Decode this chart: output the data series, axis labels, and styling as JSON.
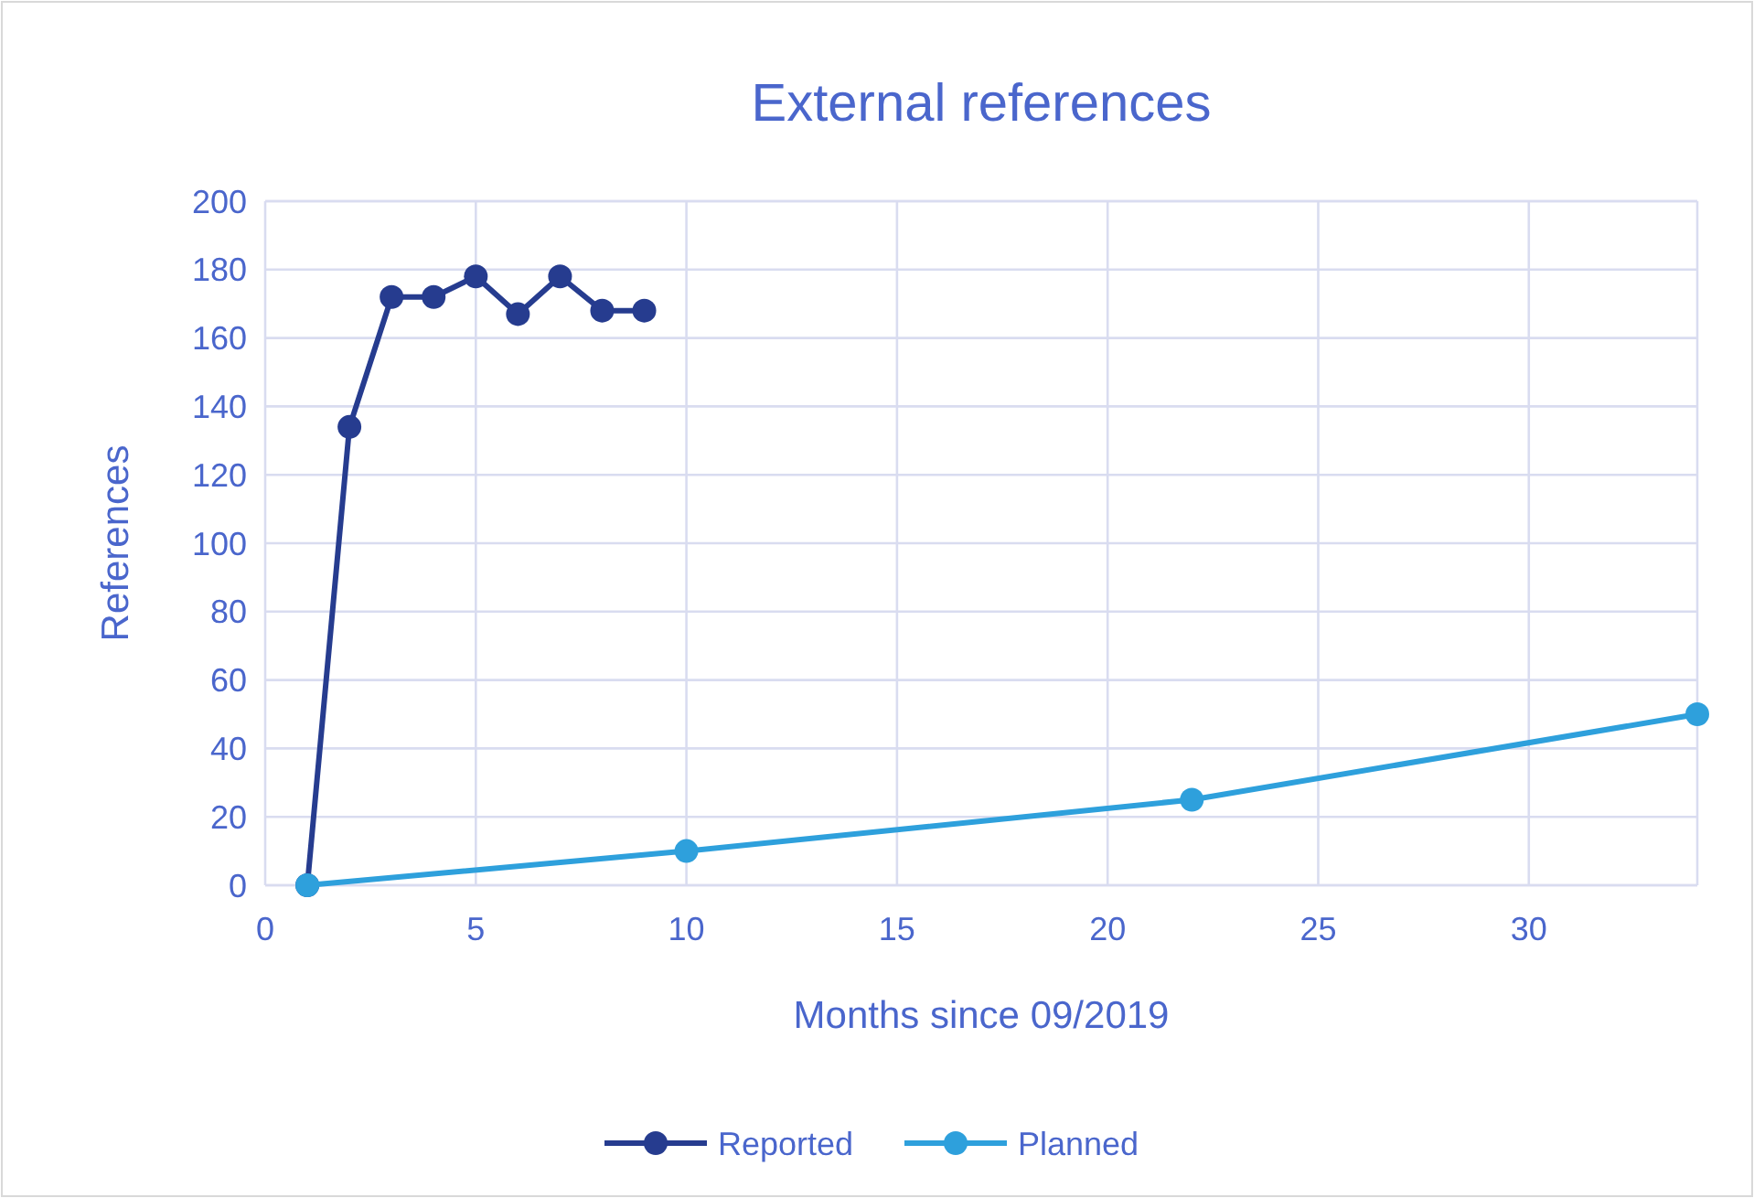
{
  "chart_data": {
    "type": "line",
    "title": "External references",
    "xlabel": "Months since 09/2019",
    "ylabel": "References",
    "xlim": [
      0,
      34
    ],
    "xticks": [
      0,
      5,
      10,
      15,
      20,
      25,
      30
    ],
    "ylim": [
      0,
      200
    ],
    "yticks": [
      0,
      20,
      40,
      60,
      80,
      100,
      120,
      140,
      160,
      180,
      200
    ],
    "grid": true,
    "legend": "bottom",
    "marker": "circle",
    "line_style": "solid",
    "series": [
      {
        "name": "Reported",
        "color": "#263c8f",
        "x": [
          1,
          2,
          3,
          4,
          5,
          6,
          7,
          8,
          9
        ],
        "values": [
          0,
          134,
          172,
          172,
          178,
          167,
          178,
          168,
          168
        ]
      },
      {
        "name": "Planned",
        "color": "#2ea0dc",
        "x": [
          1,
          10,
          22,
          34
        ],
        "values": [
          0,
          10,
          25,
          50
        ]
      }
    ]
  }
}
